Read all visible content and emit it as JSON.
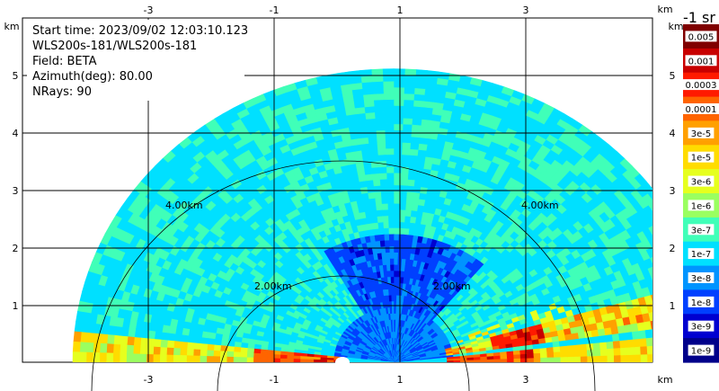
{
  "info": {
    "start_time": "Start time: 2023/09/02 12:03:10.123",
    "instrument": "WLS200s-181/WLS200s-181",
    "field": "Field: BETA",
    "azimuth": "Azimuth(deg): 80.00",
    "nrays": "NRays: 90"
  },
  "colorbar": {
    "unit_label": "-1 sr",
    "labels": [
      "0.005",
      "0.001",
      "0.0003",
      "0.0001",
      "3e-5",
      "1e-5",
      "3e-6",
      "1e-6",
      "3e-7",
      "1e-7",
      "3e-8",
      "1e-8",
      "3e-9",
      "1e-9"
    ],
    "colors": [
      "#800000",
      "#c80000",
      "#ff1a00",
      "#ff6400",
      "#ffa000",
      "#ffdc00",
      "#e6ff1e",
      "#9aff60",
      "#40ffb8",
      "#00e0ff",
      "#0094ff",
      "#0040ff",
      "#0000d0",
      "#00008a"
    ]
  },
  "chart_data": {
    "type": "heatmap",
    "x_unit": "km",
    "y_unit": "km",
    "x_ticks": [
      "-3",
      "-1",
      "1",
      "3"
    ],
    "y_ticks": [
      "1",
      "2",
      "3",
      "4",
      "5"
    ],
    "xlim": [
      -5.9,
      4.1
    ],
    "ylim": [
      0,
      5.9
    ],
    "range_rings": [
      {
        "radius_km": 2,
        "label": "2.00km"
      },
      {
        "radius_km": 4,
        "label": "4.00km"
      }
    ],
    "max_range_km": 5.1,
    "field": "BETA",
    "scale": "log",
    "value_range": [
      1e-09,
      0.005
    ]
  }
}
